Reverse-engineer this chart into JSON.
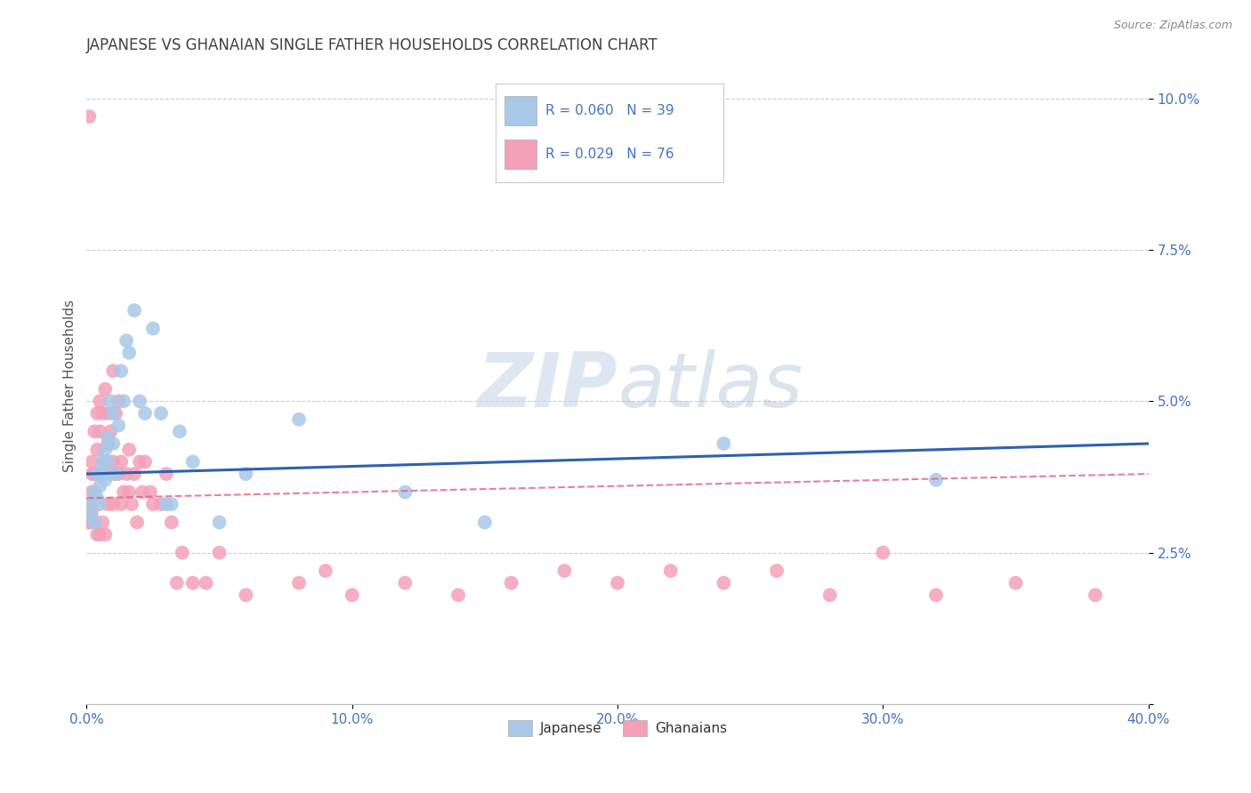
{
  "title": "JAPANESE VS GHANAIAN SINGLE FATHER HOUSEHOLDS CORRELATION CHART",
  "source": "Source: ZipAtlas.com",
  "ylabel": "Single Father Households",
  "xlim": [
    0.0,
    0.4
  ],
  "ylim": [
    0.0,
    0.105
  ],
  "xticks": [
    0.0,
    0.1,
    0.2,
    0.3,
    0.4
  ],
  "xtick_labels": [
    "0.0%",
    "10.0%",
    "20.0%",
    "30.0%",
    "40.0%"
  ],
  "yticks": [
    0.0,
    0.025,
    0.05,
    0.075,
    0.1
  ],
  "ytick_labels": [
    "",
    "2.5%",
    "5.0%",
    "7.5%",
    "10.0%"
  ],
  "watermark_zip": "ZIP",
  "watermark_atlas": "atlas",
  "legend_r_japanese": "R = 0.060",
  "legend_n_japanese": "N = 39",
  "legend_r_ghanaian": "R = 0.029",
  "legend_n_ghanaian": "N = 76",
  "legend_label_japanese": "Japanese",
  "legend_label_ghanaians": "Ghanaians",
  "japanese_color": "#a8c8e8",
  "ghanaian_color": "#f4a0b8",
  "japanese_line_color": "#3060b0",
  "ghanaian_line_color": "#e06080",
  "background_color": "#ffffff",
  "grid_color": "#cccccc",
  "title_color": "#404040",
  "axis_label_color": "#4472c4",
  "japanese_x": [
    0.001,
    0.002,
    0.003,
    0.003,
    0.004,
    0.004,
    0.005,
    0.005,
    0.006,
    0.006,
    0.007,
    0.007,
    0.008,
    0.008,
    0.009,
    0.01,
    0.01,
    0.011,
    0.012,
    0.013,
    0.014,
    0.015,
    0.016,
    0.018,
    0.02,
    0.022,
    0.025,
    0.028,
    0.03,
    0.032,
    0.035,
    0.04,
    0.05,
    0.06,
    0.08,
    0.12,
    0.15,
    0.24,
    0.32
  ],
  "japanese_y": [
    0.033,
    0.031,
    0.035,
    0.03,
    0.034,
    0.038,
    0.033,
    0.036,
    0.04,
    0.038,
    0.042,
    0.037,
    0.044,
    0.04,
    0.05,
    0.043,
    0.048,
    0.038,
    0.046,
    0.055,
    0.05,
    0.06,
    0.058,
    0.065,
    0.05,
    0.048,
    0.062,
    0.048,
    0.033,
    0.033,
    0.045,
    0.04,
    0.03,
    0.038,
    0.047,
    0.035,
    0.03,
    0.043,
    0.037
  ],
  "ghanaian_x": [
    0.001,
    0.001,
    0.001,
    0.002,
    0.002,
    0.002,
    0.002,
    0.003,
    0.003,
    0.003,
    0.003,
    0.004,
    0.004,
    0.004,
    0.004,
    0.005,
    0.005,
    0.005,
    0.006,
    0.006,
    0.006,
    0.007,
    0.007,
    0.007,
    0.008,
    0.008,
    0.008,
    0.009,
    0.009,
    0.01,
    0.01,
    0.01,
    0.011,
    0.011,
    0.012,
    0.012,
    0.013,
    0.013,
    0.014,
    0.015,
    0.016,
    0.016,
    0.017,
    0.018,
    0.019,
    0.02,
    0.021,
    0.022,
    0.024,
    0.025,
    0.028,
    0.03,
    0.032,
    0.034,
    0.036,
    0.04,
    0.045,
    0.05,
    0.06,
    0.08,
    0.09,
    0.1,
    0.12,
    0.14,
    0.16,
    0.18,
    0.2,
    0.22,
    0.24,
    0.26,
    0.28,
    0.3,
    0.32,
    0.35,
    0.38,
    0.001
  ],
  "ghanaian_y": [
    0.097,
    0.033,
    0.03,
    0.04,
    0.035,
    0.038,
    0.032,
    0.045,
    0.038,
    0.035,
    0.03,
    0.048,
    0.042,
    0.038,
    0.028,
    0.05,
    0.045,
    0.028,
    0.048,
    0.038,
    0.03,
    0.052,
    0.04,
    0.028,
    0.048,
    0.043,
    0.033,
    0.045,
    0.038,
    0.055,
    0.04,
    0.033,
    0.048,
    0.038,
    0.05,
    0.038,
    0.04,
    0.033,
    0.035,
    0.038,
    0.042,
    0.035,
    0.033,
    0.038,
    0.03,
    0.04,
    0.035,
    0.04,
    0.035,
    0.033,
    0.033,
    0.038,
    0.03,
    0.02,
    0.025,
    0.02,
    0.02,
    0.025,
    0.018,
    0.02,
    0.022,
    0.018,
    0.02,
    0.018,
    0.02,
    0.022,
    0.02,
    0.022,
    0.02,
    0.022,
    0.018,
    0.025,
    0.018,
    0.02,
    0.018,
    0.03
  ]
}
